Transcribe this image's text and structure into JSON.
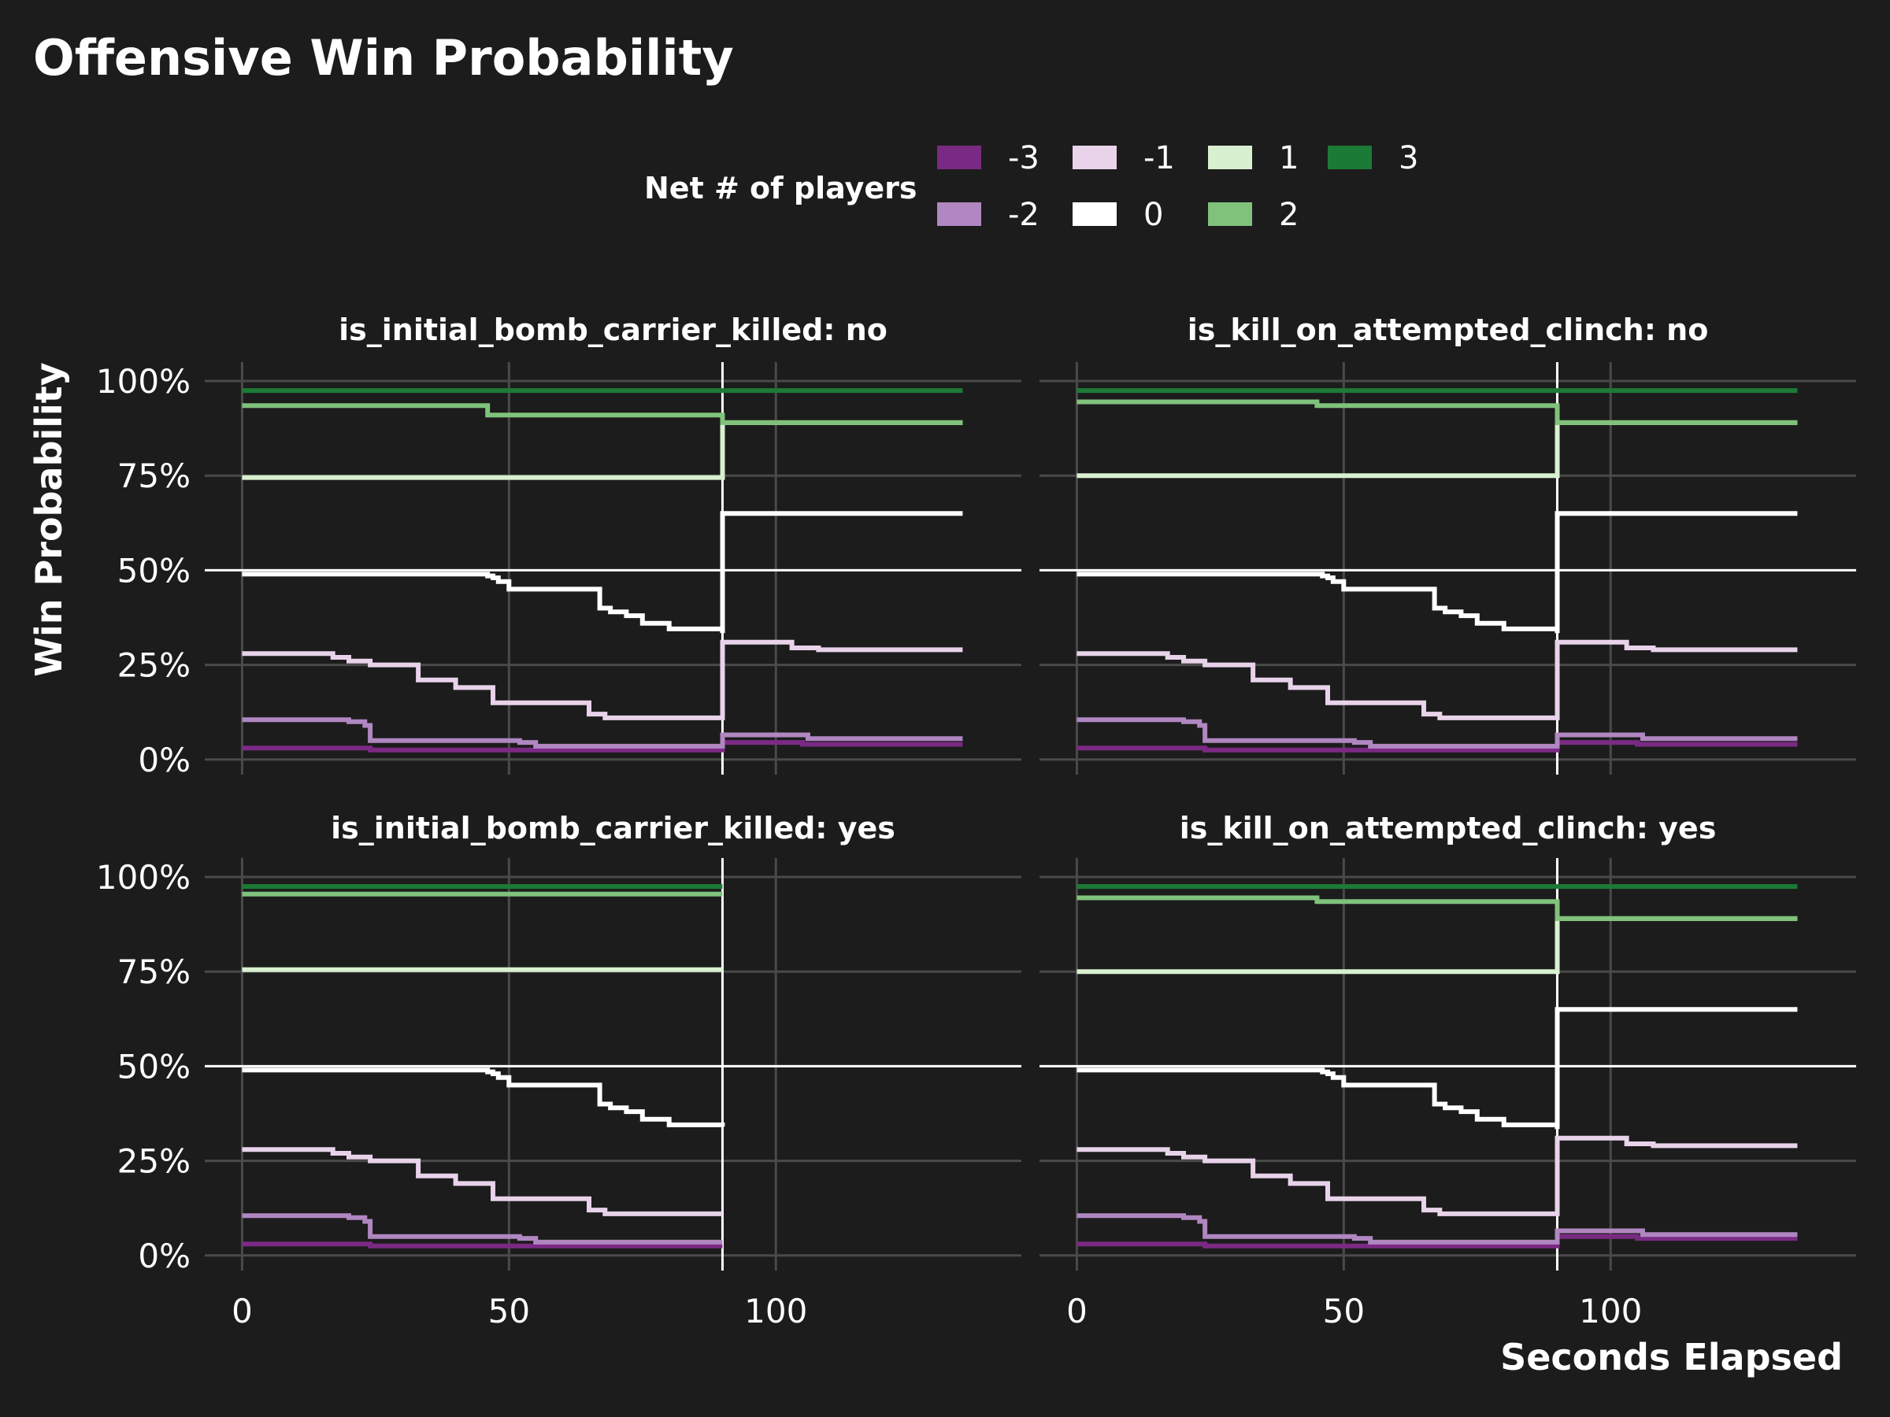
{
  "chart_data": {
    "type": "line",
    "title": "Offensive Win Probability",
    "xlabel": "Seconds Elapsed",
    "ylabel": "Win Probability",
    "xlim": [
      -7,
      146
    ],
    "ylim": [
      -0.04,
      1.05
    ],
    "x_ticks": [
      0,
      50,
      100
    ],
    "y_ticks": [
      0,
      0.25,
      0.5,
      0.75,
      1.0
    ],
    "y_tick_labels": [
      "0%",
      "25%",
      "50%",
      "75%",
      "100%"
    ],
    "reference_lines": {
      "y": 0.5,
      "x": 90
    },
    "grid": true,
    "legend": {
      "title": "Net # of players",
      "position": "top",
      "entries": [
        {
          "label": "-3",
          "color": "#7b2a84"
        },
        {
          "label": "-2",
          "color": "#b087c1"
        },
        {
          "label": "-1",
          "color": "#e8d3ea"
        },
        {
          "label": "0",
          "color": "#ffffff"
        },
        {
          "label": "1",
          "color": "#d8f0d0"
        },
        {
          "label": "2",
          "color": "#80c27c"
        },
        {
          "label": "3",
          "color": "#1c7a37"
        }
      ]
    },
    "facets": [
      {
        "label": "is_initial_bomb_carrier_killed: no",
        "series": [
          {
            "name": "-3",
            "x": [
              0,
              24,
              90,
              90.01,
              105,
              135
            ],
            "y": [
              0.03,
              0.025,
              0.025,
              0.045,
              0.04,
              0.04
            ]
          },
          {
            "name": "-2",
            "x": [
              0,
              15,
              20,
              23,
              24,
              50,
              52,
              55,
              90,
              90.01,
              102,
              106,
              135
            ],
            "y": [
              0.105,
              0.105,
              0.1,
              0.09,
              0.05,
              0.05,
              0.045,
              0.035,
              0.035,
              0.065,
              0.065,
              0.055,
              0.055
            ]
          },
          {
            "name": "-1",
            "x": [
              0,
              15,
              17,
              20,
              24,
              33,
              40,
              47,
              52,
              65,
              68,
              90,
              90.01,
              100,
              103,
              108,
              135
            ],
            "y": [
              0.28,
              0.28,
              0.27,
              0.26,
              0.25,
              0.21,
              0.19,
              0.15,
              0.15,
              0.12,
              0.11,
              0.11,
              0.31,
              0.31,
              0.295,
              0.29,
              0.29
            ]
          },
          {
            "name": "0",
            "x": [
              0,
              45,
              46,
              47,
              48,
              50,
              65,
              67,
              69,
              72,
              75,
              80,
              90,
              90.01,
              135
            ],
            "y": [
              0.49,
              0.49,
              0.485,
              0.48,
              0.47,
              0.45,
              0.45,
              0.4,
              0.39,
              0.38,
              0.36,
              0.345,
              0.34,
              0.65,
              0.65
            ]
          },
          {
            "name": "1",
            "x": [
              0,
              90,
              90.01,
              135
            ],
            "y": [
              0.745,
              0.745,
              0.89,
              0.89
            ]
          },
          {
            "name": "2",
            "x": [
              0,
              44,
              46,
              90,
              90.01,
              135
            ],
            "y": [
              0.935,
              0.935,
              0.91,
              0.905,
              0.89,
              0.89
            ]
          },
          {
            "name": "3",
            "x": [
              0,
              135
            ],
            "y": [
              0.975,
              0.975
            ]
          }
        ]
      },
      {
        "label": "is_kill_on_attempted_clinch: no",
        "series": [
          {
            "name": "-3",
            "x": [
              0,
              24,
              90,
              90.01,
              105,
              135
            ],
            "y": [
              0.03,
              0.025,
              0.025,
              0.045,
              0.04,
              0.04
            ]
          },
          {
            "name": "-2",
            "x": [
              0,
              15,
              20,
              23,
              24,
              50,
              52,
              55,
              90,
              90.01,
              102,
              106,
              135
            ],
            "y": [
              0.105,
              0.105,
              0.1,
              0.09,
              0.05,
              0.05,
              0.045,
              0.035,
              0.035,
              0.065,
              0.065,
              0.055,
              0.055
            ]
          },
          {
            "name": "-1",
            "x": [
              0,
              15,
              17,
              20,
              24,
              33,
              40,
              47,
              52,
              65,
              68,
              90,
              90.01,
              100,
              103,
              108,
              135
            ],
            "y": [
              0.28,
              0.28,
              0.27,
              0.26,
              0.25,
              0.21,
              0.19,
              0.15,
              0.15,
              0.12,
              0.11,
              0.11,
              0.31,
              0.31,
              0.295,
              0.29,
              0.29
            ]
          },
          {
            "name": "0",
            "x": [
              0,
              45,
              46,
              47,
              48,
              50,
              65,
              67,
              69,
              72,
              75,
              80,
              90,
              90.01,
              135
            ],
            "y": [
              0.49,
              0.49,
              0.485,
              0.48,
              0.47,
              0.45,
              0.45,
              0.4,
              0.39,
              0.38,
              0.36,
              0.345,
              0.34,
              0.65,
              0.65
            ]
          },
          {
            "name": "1",
            "x": [
              0,
              90,
              90.01,
              135
            ],
            "y": [
              0.75,
              0.75,
              0.89,
              0.89
            ]
          },
          {
            "name": "2",
            "x": [
              0,
              44,
              45,
              90,
              90.01,
              135
            ],
            "y": [
              0.945,
              0.945,
              0.935,
              0.93,
              0.89,
              0.89
            ]
          },
          {
            "name": "3",
            "x": [
              0,
              135
            ],
            "y": [
              0.975,
              0.975
            ]
          }
        ]
      },
      {
        "label": "is_initial_bomb_carrier_killed: yes",
        "series": [
          {
            "name": "-3",
            "x": [
              0,
              24,
              90
            ],
            "y": [
              0.03,
              0.025,
              0.025
            ]
          },
          {
            "name": "-2",
            "x": [
              0,
              15,
              20,
              23,
              24,
              50,
              52,
              55,
              90
            ],
            "y": [
              0.105,
              0.105,
              0.1,
              0.09,
              0.05,
              0.05,
              0.045,
              0.035,
              0.035
            ]
          },
          {
            "name": "-1",
            "x": [
              0,
              15,
              17,
              20,
              24,
              33,
              40,
              47,
              52,
              65,
              68,
              90
            ],
            "y": [
              0.28,
              0.28,
              0.27,
              0.26,
              0.25,
              0.21,
              0.19,
              0.15,
              0.15,
              0.12,
              0.11,
              0.11
            ]
          },
          {
            "name": "0",
            "x": [
              0,
              45,
              46,
              47,
              48,
              50,
              65,
              67,
              69,
              72,
              75,
              80,
              90
            ],
            "y": [
              0.49,
              0.49,
              0.485,
              0.48,
              0.47,
              0.45,
              0.45,
              0.4,
              0.39,
              0.38,
              0.36,
              0.345,
              0.34
            ]
          },
          {
            "name": "1",
            "x": [
              0,
              90
            ],
            "y": [
              0.755,
              0.755
            ]
          },
          {
            "name": "2",
            "x": [
              0,
              90
            ],
            "y": [
              0.955,
              0.955
            ]
          },
          {
            "name": "3",
            "x": [
              0,
              90
            ],
            "y": [
              0.975,
              0.975
            ]
          }
        ]
      },
      {
        "label": "is_kill_on_attempted_clinch: yes",
        "series": [
          {
            "name": "-3",
            "x": [
              0,
              24,
              90,
              90.01,
              105,
              135
            ],
            "y": [
              0.03,
              0.025,
              0.025,
              0.05,
              0.045,
              0.045
            ]
          },
          {
            "name": "-2",
            "x": [
              0,
              15,
              20,
              23,
              24,
              50,
              52,
              55,
              90,
              90.01,
              102,
              106,
              135
            ],
            "y": [
              0.105,
              0.105,
              0.1,
              0.09,
              0.05,
              0.05,
              0.045,
              0.035,
              0.035,
              0.065,
              0.065,
              0.055,
              0.055
            ]
          },
          {
            "name": "-1",
            "x": [
              0,
              15,
              17,
              20,
              24,
              33,
              40,
              47,
              52,
              65,
              68,
              90,
              90.01,
              100,
              103,
              108,
              135
            ],
            "y": [
              0.28,
              0.28,
              0.27,
              0.26,
              0.25,
              0.21,
              0.19,
              0.15,
              0.15,
              0.12,
              0.11,
              0.11,
              0.31,
              0.31,
              0.295,
              0.29,
              0.29
            ]
          },
          {
            "name": "0",
            "x": [
              0,
              45,
              46,
              47,
              48,
              50,
              65,
              67,
              69,
              72,
              75,
              80,
              90,
              90.01,
              135
            ],
            "y": [
              0.49,
              0.49,
              0.485,
              0.48,
              0.47,
              0.45,
              0.45,
              0.4,
              0.39,
              0.38,
              0.36,
              0.345,
              0.34,
              0.65,
              0.65
            ]
          },
          {
            "name": "1",
            "x": [
              0,
              90,
              90.01,
              135
            ],
            "y": [
              0.75,
              0.75,
              0.89,
              0.89
            ]
          },
          {
            "name": "2",
            "x": [
              0,
              44,
              45,
              90,
              90.01,
              135
            ],
            "y": [
              0.945,
              0.945,
              0.935,
              0.93,
              0.89,
              0.89
            ]
          },
          {
            "name": "3",
            "x": [
              0,
              135
            ],
            "y": [
              0.975,
              0.975
            ]
          }
        ]
      }
    ]
  }
}
